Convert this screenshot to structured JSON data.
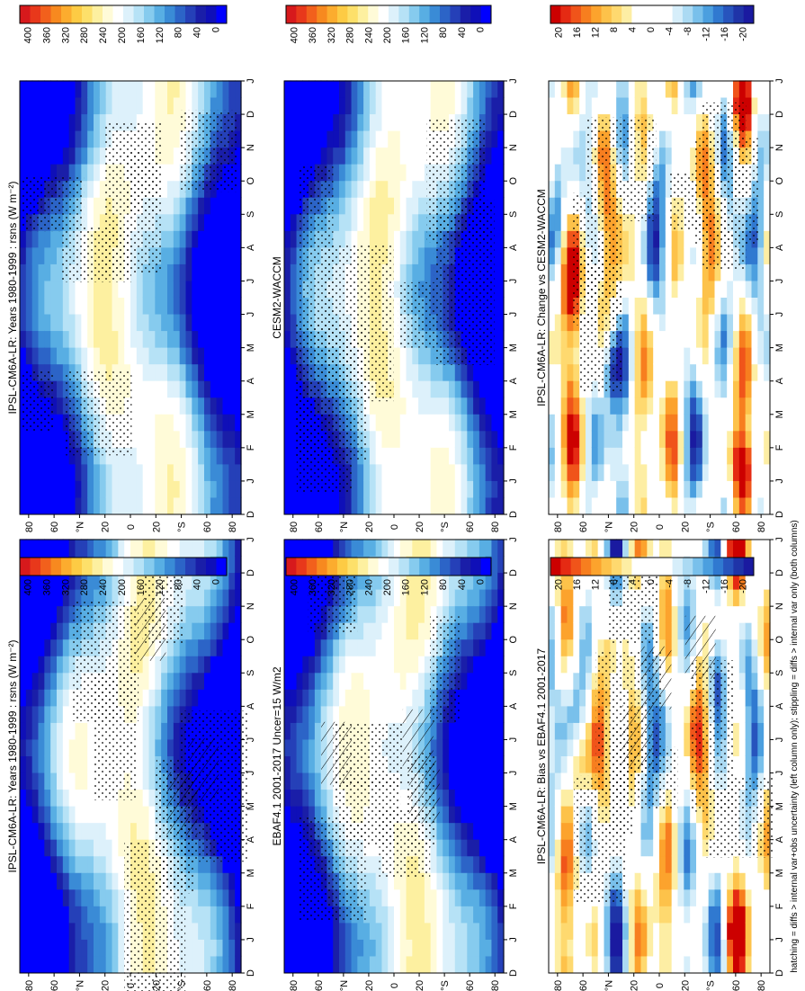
{
  "figure": {
    "caption": "hatching = diffs > internal var+obs uncertainty (left column only); stippling = diffs > internal var only (both columns)"
  },
  "chart_data": [
    {
      "type": "heatmap",
      "title": "IPSL-CM6A-LR: Years 1980-1999 : rsns (W m⁻²)",
      "x_ticks": [
        "D",
        "J",
        "F",
        "M",
        "A",
        "M",
        "J",
        "J",
        "A",
        "S",
        "O",
        "N",
        "D",
        "J"
      ],
      "y_ticks": [
        "80",
        "60",
        "°N",
        "20",
        "0",
        "20",
        "°S",
        "60",
        "80"
      ],
      "colorbar": {
        "labels": [
          "400",
          "360",
          "320",
          "280",
          "240",
          "200",
          "160",
          "120",
          "80",
          "40",
          "0"
        ],
        "range": [
          0,
          400
        ],
        "palette": "abs"
      },
      "field": "abs",
      "seed": 1,
      "hatching": true,
      "stippling": true
    },
    {
      "type": "heatmap",
      "title": "EBAF4.1 2001-2017 Uncer=15 W/m2",
      "x_ticks": [
        "D",
        "J",
        "F",
        "M",
        "A",
        "M",
        "J",
        "J",
        "A",
        "S",
        "O",
        "N",
        "D",
        "J"
      ],
      "y_ticks": [
        "80",
        "60",
        "°N",
        "20",
        "0",
        "20",
        "°S",
        "60",
        "80"
      ],
      "colorbar": {
        "labels": [
          "400",
          "360",
          "320",
          "280",
          "240",
          "200",
          "160",
          "120",
          "80",
          "40",
          "0"
        ],
        "range": [
          0,
          400
        ],
        "palette": "abs"
      },
      "field": "abs",
      "seed": 2,
      "hatching": true,
      "stippling": true
    },
    {
      "type": "heatmap",
      "title": "IPSL-CM6A-LR: Bias vs EBAF4.1 2001-2017",
      "x_ticks": [
        "D",
        "J",
        "F",
        "M",
        "A",
        "M",
        "J",
        "J",
        "A",
        "S",
        "O",
        "N",
        "D",
        "J"
      ],
      "y_ticks": [
        "80",
        "60",
        "°N",
        "20",
        "0",
        "20",
        "°S",
        "60",
        "80"
      ],
      "colorbar": {
        "labels": [
          "20",
          "16",
          "12",
          "8",
          "4",
          "0",
          "-4",
          "-8",
          "-12",
          "-16",
          "-20"
        ],
        "range": [
          -22,
          22
        ],
        "palette": "diff"
      },
      "field": "bias",
      "seed": 3,
      "hatching": true,
      "stippling": true
    },
    {
      "type": "heatmap",
      "title": "IPSL-CM6A-LR: Years 1980-1999 : rsns (W m⁻²)",
      "x_ticks": [
        "D",
        "J",
        "F",
        "M",
        "A",
        "M",
        "J",
        "J",
        "A",
        "S",
        "O",
        "N",
        "D",
        "J"
      ],
      "y_ticks": [
        "80",
        "60",
        "°N",
        "20",
        "0",
        "20",
        "°S",
        "60",
        "80"
      ],
      "colorbar": {
        "labels": [
          "400",
          "360",
          "320",
          "280",
          "240",
          "200",
          "160",
          "120",
          "80",
          "40",
          "0"
        ],
        "range": [
          0,
          400
        ],
        "palette": "abs"
      },
      "field": "abs",
      "seed": 4,
      "hatching": false,
      "stippling": true
    },
    {
      "type": "heatmap",
      "title": "CESM2-WACCM",
      "x_ticks": [
        "D",
        "J",
        "F",
        "M",
        "A",
        "M",
        "J",
        "J",
        "A",
        "S",
        "O",
        "N",
        "D",
        "J"
      ],
      "y_ticks": [
        "80",
        "60",
        "°N",
        "20",
        "0",
        "20",
        "°S",
        "60",
        "80"
      ],
      "colorbar": {
        "labels": [
          "400",
          "360",
          "320",
          "280",
          "240",
          "200",
          "160",
          "120",
          "80",
          "40",
          "0"
        ],
        "range": [
          0,
          400
        ],
        "palette": "abs"
      },
      "field": "abs",
      "seed": 5,
      "hatching": false,
      "stippling": true
    },
    {
      "type": "heatmap",
      "title": "IPSL-CM6A-LR: Change vs CESM2-WACCM",
      "x_ticks": [
        "D",
        "J",
        "F",
        "M",
        "A",
        "M",
        "J",
        "J",
        "A",
        "S",
        "O",
        "N",
        "D",
        "J"
      ],
      "y_ticks": [
        "80",
        "60",
        "°N",
        "20",
        "0",
        "20",
        "°S",
        "60",
        "80"
      ],
      "colorbar": {
        "labels": [
          "20",
          "16",
          "12",
          "8",
          "4",
          "0",
          "-4",
          "-8",
          "-12",
          "-16",
          "-20"
        ],
        "range": [
          -22,
          22
        ],
        "palette": "diff"
      },
      "field": "change",
      "seed": 6,
      "hatching": false,
      "stippling": true
    }
  ]
}
